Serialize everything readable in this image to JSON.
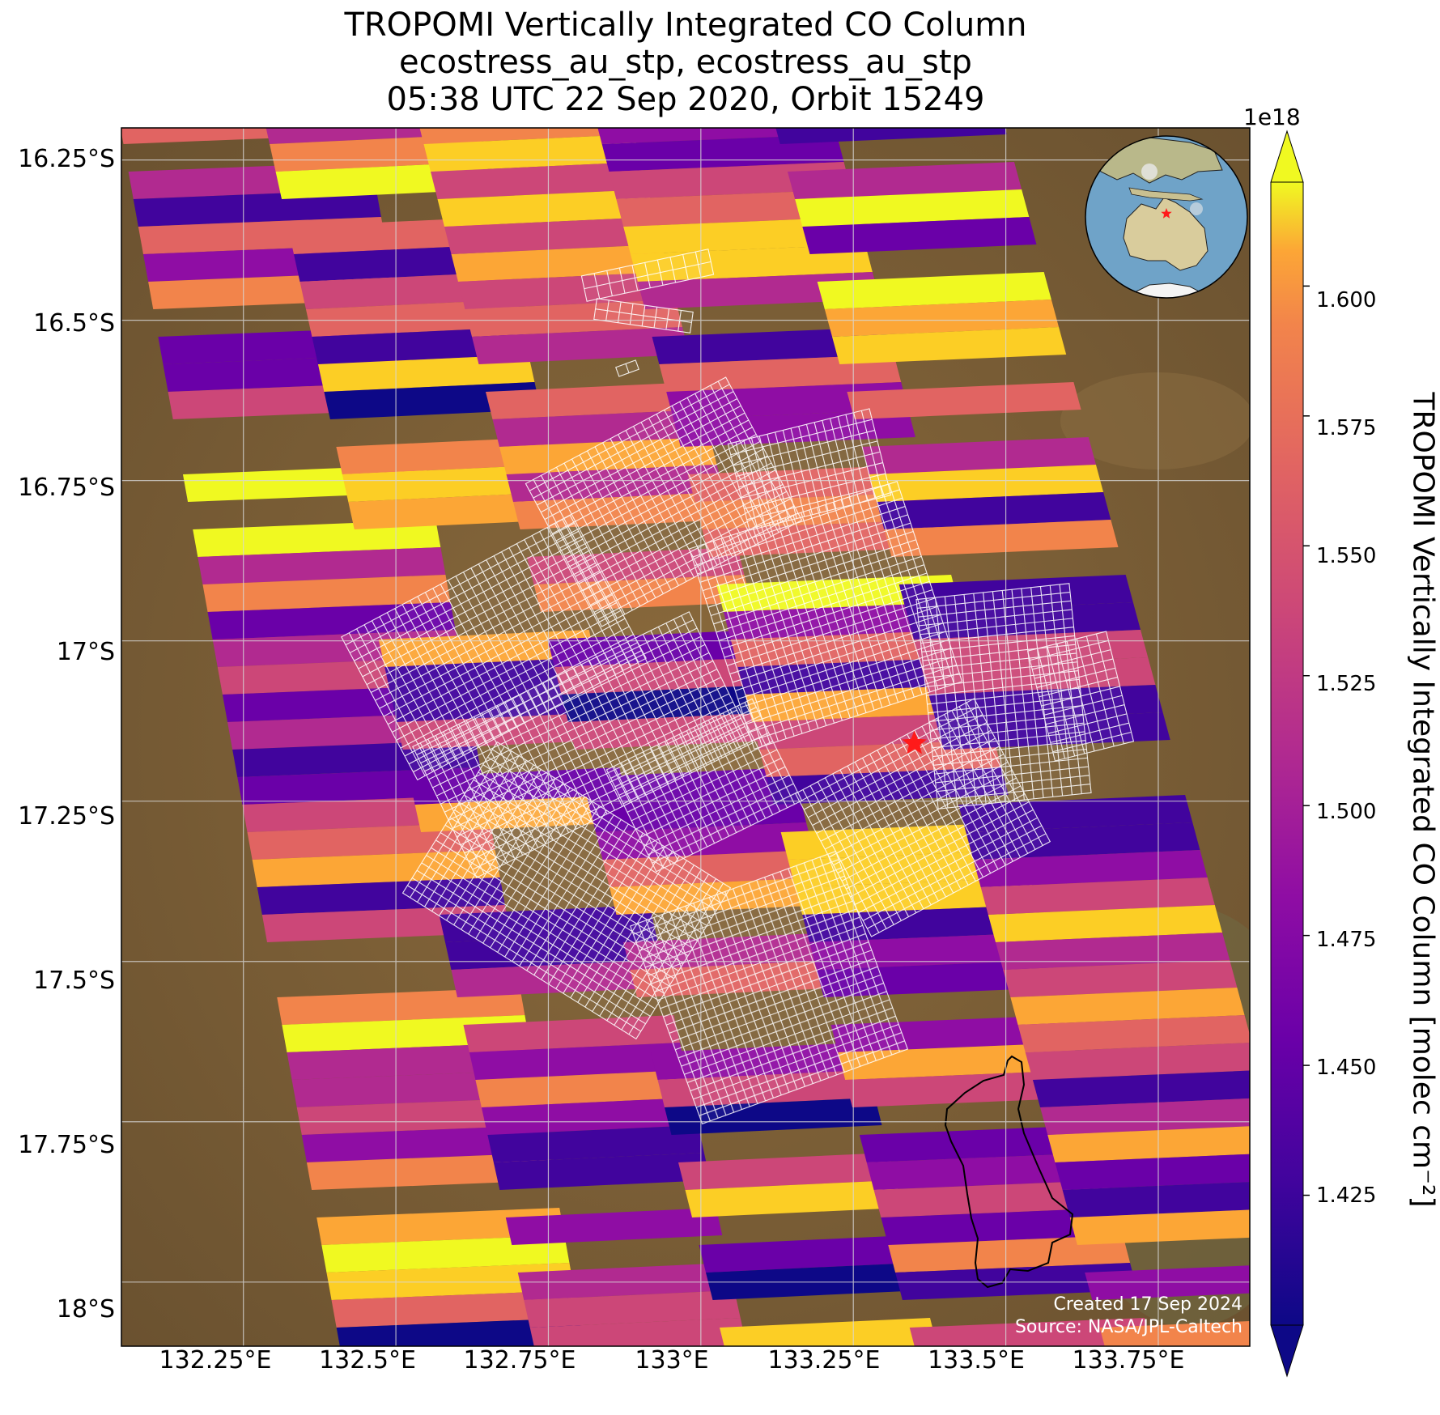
{
  "title_lines": [
    "TROPOMI Vertically Integrated CO Column",
    "ecostress_au_stp, ecostress_au_stp",
    "05:38 UTC 22 Sep 2020, Orbit 15249"
  ],
  "credits": {
    "created": "Created 17 Sep 2024",
    "source": "Source: NASA/JPL-Caltech"
  },
  "colorbar": {
    "label": "TROPOMI Vertically Integrated CO Column [molec cm⁻²]",
    "exponent": "1e18",
    "colormap": "plasma",
    "min": 1.4,
    "max": 1.62,
    "extend": "both",
    "ticks": [
      "1.425",
      "1.450",
      "1.475",
      "1.500",
      "1.525",
      "1.550",
      "1.575",
      "1.600"
    ]
  },
  "axes": {
    "lat_labels": [
      "16.25°S",
      "16.5°S",
      "16.75°S",
      "17°S",
      "17.25°S",
      "17.5°S",
      "17.75°S",
      "18°S"
    ],
    "lat_values": [
      -16.25,
      -16.5,
      -16.75,
      -17.0,
      -17.25,
      -17.5,
      -17.75,
      -18.0
    ],
    "lon_labels": [
      "132.25°E",
      "132.5°E",
      "132.75°E",
      "133°E",
      "133.25°E",
      "133.5°E",
      "133.75°E"
    ],
    "lon_values": [
      132.25,
      132.5,
      132.75,
      133.0,
      133.25,
      133.5,
      133.75
    ],
    "lat_range": [
      -18.1,
      -16.2
    ],
    "lon_range": [
      132.05,
      133.9
    ],
    "gridlines": true
  },
  "markers": {
    "site_star": {
      "lon": 133.35,
      "lat": -17.16,
      "color": "#ff1a1a"
    }
  },
  "inset_globe": {
    "land_color": "#d9cc9c",
    "ocean_color": "#6fa3c8",
    "marker_color": "#ff1a1a"
  },
  "colors": {
    "background_land": "#7a5d34",
    "grid": "#d8d8d8",
    "overlay_grid": "#ffffff",
    "outline": "#000000"
  }
}
